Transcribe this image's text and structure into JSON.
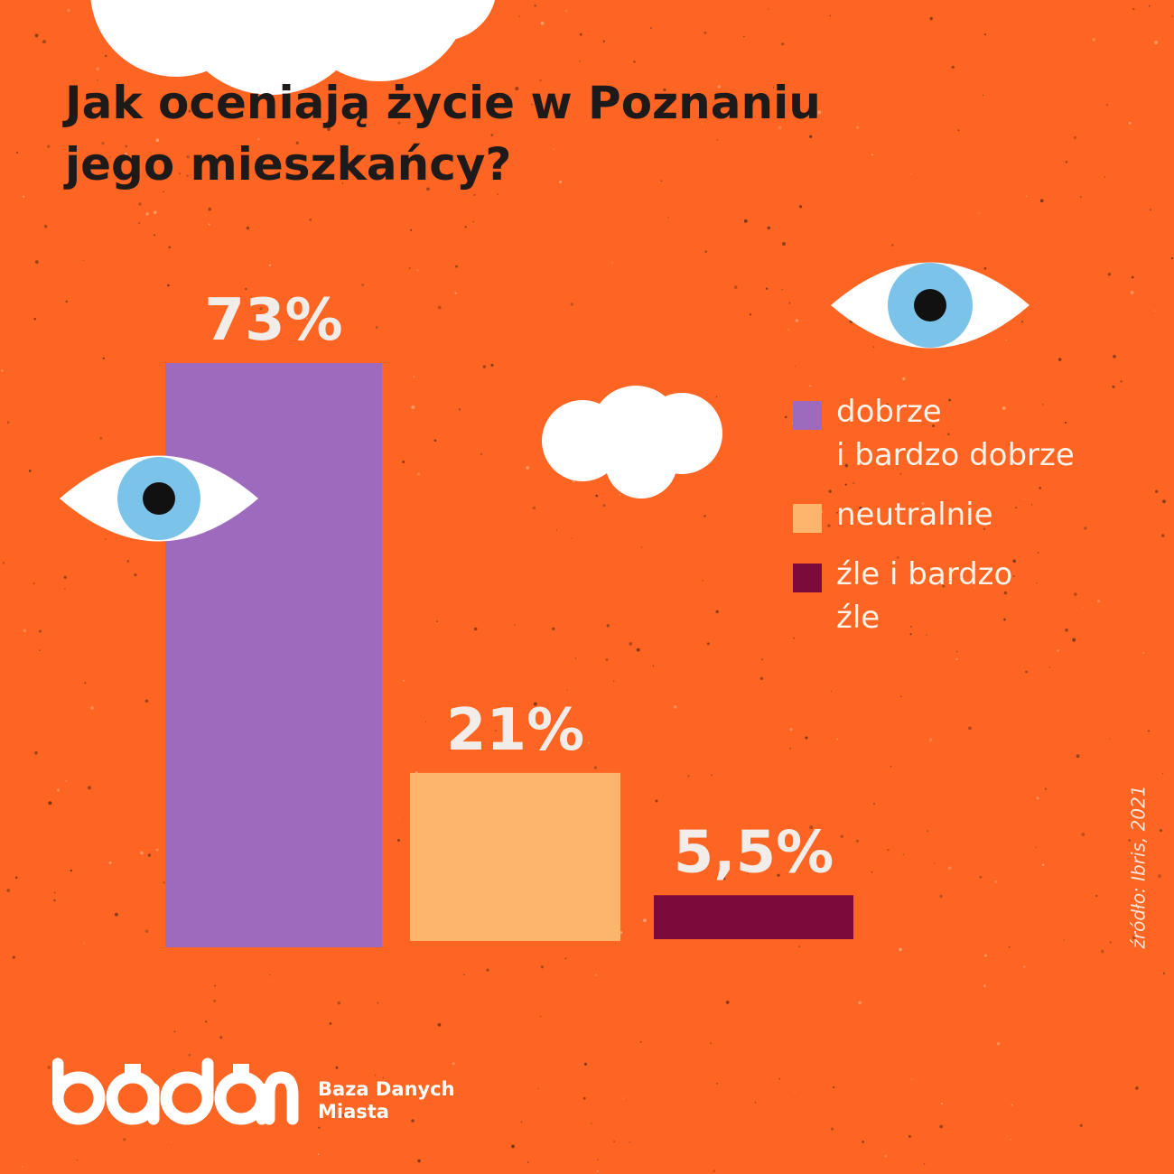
{
  "title": {
    "line1": "Jak oceniają życie w Poznaniu",
    "line2": "jego mieszkańcy?"
  },
  "chart_data": {
    "type": "bar",
    "categories": [
      "dobrze i bardzo dobrze",
      "neutralnie",
      "źle i bardzo źle"
    ],
    "values": [
      73,
      21,
      5.5
    ],
    "value_labels": [
      "73%",
      "21%",
      "5,5%"
    ],
    "unit": "%",
    "colors": [
      "#9e6abd",
      "#fdb46c",
      "#7c0b3a"
    ],
    "legend_position": "right",
    "grid": false,
    "axes_visible": false
  },
  "legend": {
    "items": [
      {
        "line1": "dobrze",
        "line2": "i bardzo dobrze",
        "color": "#9e6abd"
      },
      {
        "line1": "neutralnie",
        "color": "#fdb46c"
      },
      {
        "line1": "źle i bardzo",
        "line2": "źle",
        "color": "#7c0b3a"
      }
    ]
  },
  "source": "źródło: Ibris, 2021",
  "brand": {
    "logo_text": "badam",
    "line1": "Baza Danych",
    "line2": "Miasta"
  },
  "colors": {
    "background": "#ff6522",
    "title": "#1f1a1a",
    "label": "#f2ede9",
    "cloud": "#ffffff",
    "iris": "#7cc3ea",
    "pupil": "#111111"
  },
  "decorations": [
    "cloud-icon",
    "eye-icon"
  ]
}
